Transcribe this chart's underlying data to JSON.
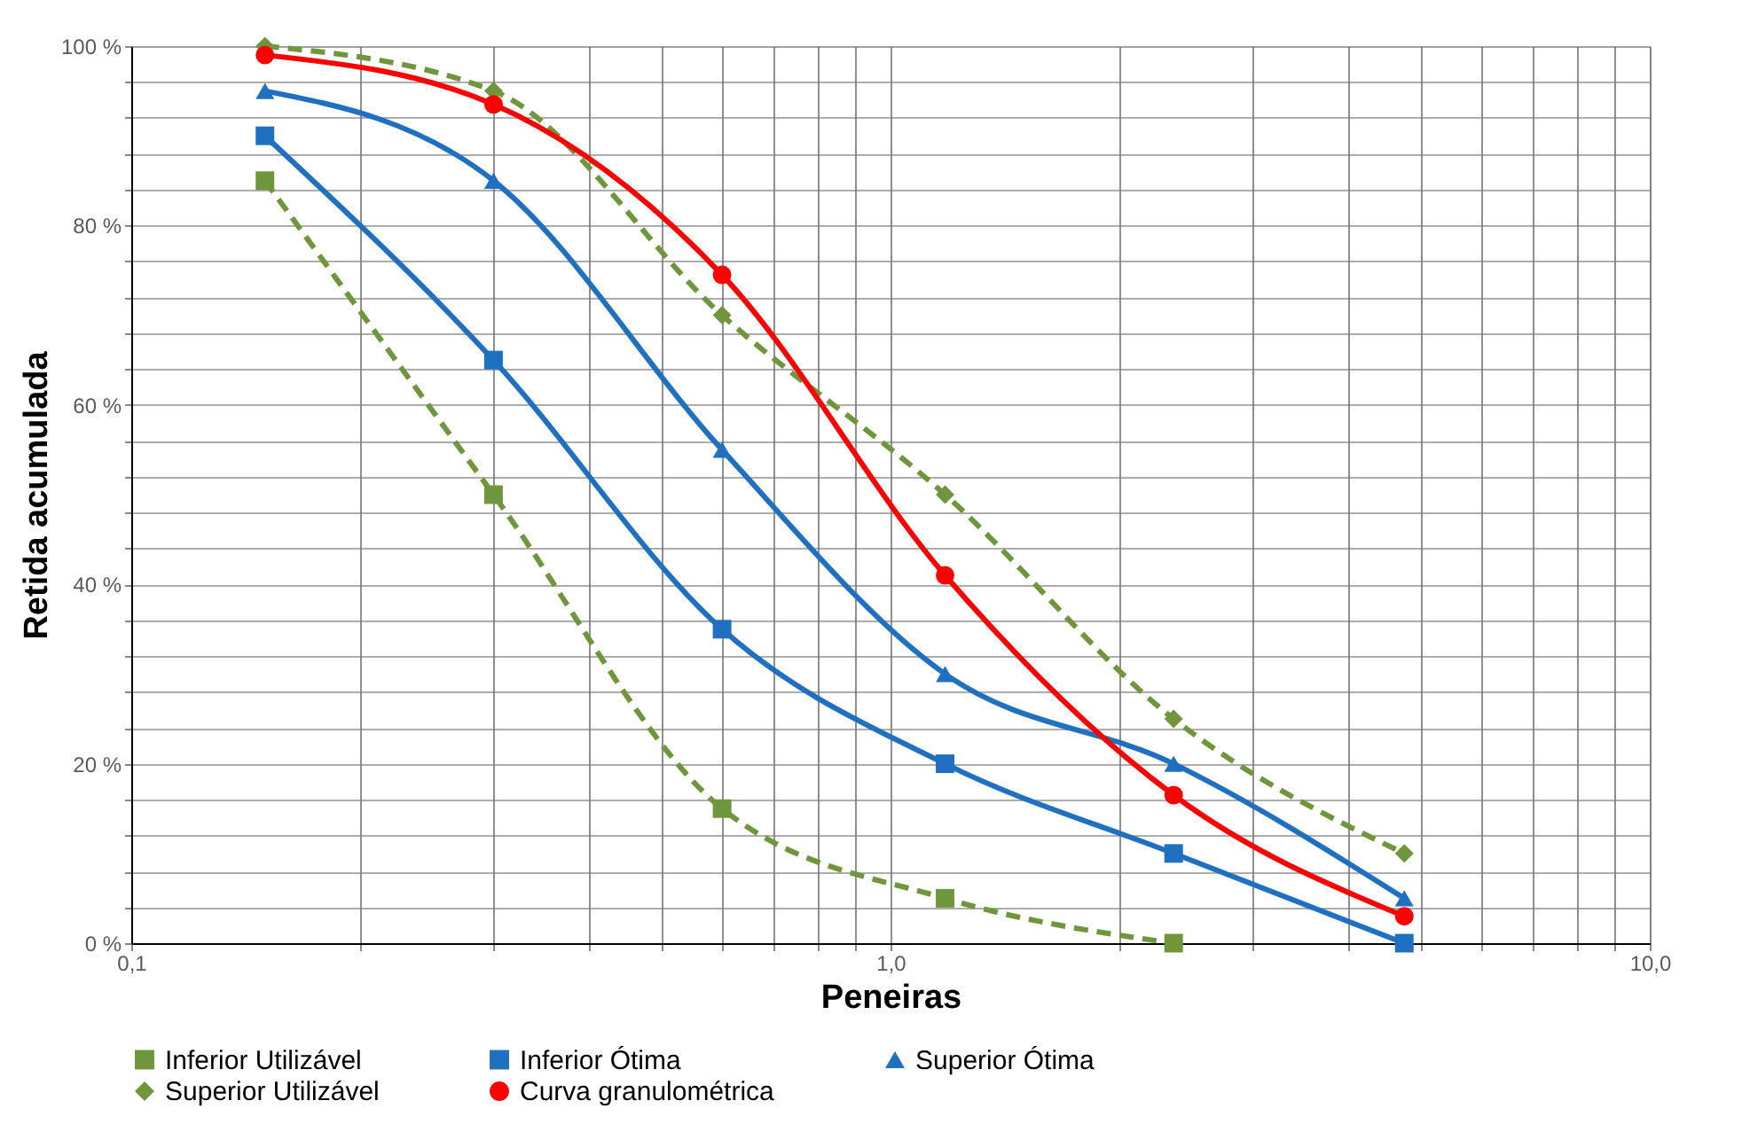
{
  "chart_data": {
    "type": "line",
    "xlabel": "Peneiras",
    "ylabel": "Retida acumulada",
    "x": [
      0.15,
      0.3,
      0.6,
      1.18,
      2.36,
      4.75
    ],
    "log": "x",
    "xlim": [
      0.1,
      10
    ],
    "ylim": [
      0,
      100
    ],
    "xticks": [
      {
        "value": 0.1,
        "label": "0,1"
      },
      {
        "value": 0.2,
        "label": null
      },
      {
        "value": 0.3,
        "label": null
      },
      {
        "value": 0.4,
        "label": null
      },
      {
        "value": 0.5,
        "label": null
      },
      {
        "value": 0.6,
        "label": null
      },
      {
        "value": 0.7,
        "label": null
      },
      {
        "value": 0.8,
        "label": null
      },
      {
        "value": 0.9,
        "label": null
      },
      {
        "value": 1,
        "label": "1,0"
      },
      {
        "value": 2,
        "label": null
      },
      {
        "value": 3,
        "label": null
      },
      {
        "value": 4,
        "label": null
      },
      {
        "value": 5,
        "label": null
      },
      {
        "value": 6,
        "label": null
      },
      {
        "value": 7,
        "label": null
      },
      {
        "value": 8,
        "label": null
      },
      {
        "value": 9,
        "label": null
      },
      {
        "value": 10,
        "label": "10,0"
      }
    ],
    "yticks": [
      {
        "value": 0,
        "label": "0 %"
      },
      {
        "value": 4,
        "label": null
      },
      {
        "value": 8,
        "label": null
      },
      {
        "value": 12,
        "label": null
      },
      {
        "value": 16,
        "label": null
      },
      {
        "value": 20,
        "label": "20 %"
      },
      {
        "value": 24,
        "label": null
      },
      {
        "value": 28,
        "label": null
      },
      {
        "value": 32,
        "label": null
      },
      {
        "value": 36,
        "label": null
      },
      {
        "value": 40,
        "label": "40 %"
      },
      {
        "value": 44,
        "label": null
      },
      {
        "value": 48,
        "label": null
      },
      {
        "value": 52,
        "label": null
      },
      {
        "value": 56,
        "label": null
      },
      {
        "value": 60,
        "label": "60 %"
      },
      {
        "value": 64,
        "label": null
      },
      {
        "value": 68,
        "label": null
      },
      {
        "value": 72,
        "label": null
      },
      {
        "value": 76,
        "label": null
      },
      {
        "value": 80,
        "label": "80 %"
      },
      {
        "value": 84,
        "label": null
      },
      {
        "value": 88,
        "label": null
      },
      {
        "value": 92,
        "label": null
      },
      {
        "value": 96,
        "label": null
      },
      {
        "value": 100,
        "label": "100 %"
      }
    ],
    "grid": true,
    "legend": "bottom",
    "series": [
      {
        "name": "Inferior Utilizável",
        "color": "#70963c",
        "marker": "square",
        "line_style": "dashed",
        "values": [
          85,
          50,
          15,
          5,
          0,
          null
        ]
      },
      {
        "name": "Inferior Ótima",
        "color": "#1f70c1",
        "marker": "square",
        "line_style": "solid",
        "values": [
          90,
          65,
          35,
          20,
          10,
          0
        ]
      },
      {
        "name": "Superior Ótima",
        "color": "#1f70c1",
        "marker": "triangle",
        "line_style": "solid",
        "values": [
          95,
          85,
          55,
          30,
          20,
          5
        ]
      },
      {
        "name": "Superior Utilizável",
        "color": "#70963c",
        "marker": "diamond",
        "line_style": "dashed",
        "values": [
          100,
          95,
          70,
          50,
          25,
          10
        ]
      },
      {
        "name": "Curva granulométrica",
        "color": "#ff0000",
        "marker": "circle",
        "line_style": "solid",
        "values": [
          99,
          93.5,
          74.5,
          41,
          16.5,
          3
        ]
      }
    ]
  }
}
